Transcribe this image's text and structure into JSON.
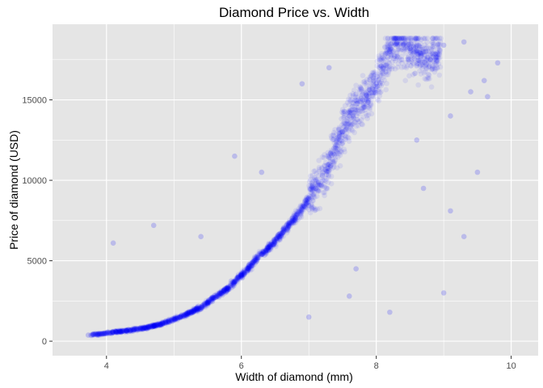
{
  "chart_data": {
    "type": "scatter",
    "title": "Diamond Price vs. Width",
    "xlabel": "Width of diamond (mm)",
    "ylabel": "Price of diamond (USD)",
    "xlim": [
      3.2,
      10.4
    ],
    "ylim": [
      -900,
      19700
    ],
    "x_ticks": [
      4,
      6,
      8,
      10
    ],
    "x_tick_labels": [
      "4",
      "6",
      "8",
      "10"
    ],
    "y_ticks": [
      0,
      5000,
      10000,
      15000
    ],
    "y_tick_labels": [
      "0",
      "5000",
      "10000",
      "15000"
    ],
    "grid": true,
    "panel_background": "#e5e5e5",
    "grid_color": "#ffffff",
    "point_color": "#0000ff",
    "point_alpha": 0.08,
    "point_count": 53940,
    "points": [
      [
        3.73,
        380
      ],
      [
        3.8,
        420
      ],
      [
        3.95,
        450
      ],
      [
        4.0,
        500
      ],
      [
        4.05,
        520
      ],
      [
        4.1,
        560
      ],
      [
        4.2,
        600
      ],
      [
        4.3,
        650
      ],
      [
        4.4,
        700
      ],
      [
        4.5,
        780
      ],
      [
        4.6,
        850
      ],
      [
        4.7,
        950
      ],
      [
        4.8,
        1050
      ],
      [
        4.9,
        1200
      ],
      [
        5.0,
        1350
      ],
      [
        5.1,
        1500
      ],
      [
        5.2,
        1700
      ],
      [
        5.3,
        1900
      ],
      [
        5.4,
        2100
      ],
      [
        5.5,
        2400
      ],
      [
        5.6,
        2700
      ],
      [
        5.7,
        3000
      ],
      [
        5.8,
        3300
      ],
      [
        5.9,
        3700
      ],
      [
        6.0,
        4100
      ],
      [
        6.1,
        4500
      ],
      [
        6.2,
        5000
      ],
      [
        6.3,
        5400
      ],
      [
        6.4,
        5800
      ],
      [
        6.5,
        6200
      ],
      [
        6.6,
        6700
      ],
      [
        6.7,
        7200
      ],
      [
        6.8,
        7700
      ],
      [
        6.9,
        8200
      ],
      [
        7.0,
        8900
      ],
      [
        7.1,
        9500
      ],
      [
        7.2,
        10300
      ],
      [
        7.3,
        11000
      ],
      [
        7.4,
        12000
      ],
      [
        7.5,
        13000
      ],
      [
        7.6,
        14000
      ],
      [
        7.8,
        15000
      ],
      [
        8.0,
        16000
      ],
      [
        8.1,
        17000
      ],
      [
        8.2,
        18000
      ],
      [
        8.3,
        18500
      ],
      [
        8.5,
        18200
      ],
      [
        8.8,
        17500
      ],
      [
        9.0,
        18400
      ],
      [
        9.3,
        18600
      ],
      [
        9.6,
        16200
      ],
      [
        9.65,
        15200
      ],
      [
        4.1,
        6100
      ],
      [
        4.7,
        7200
      ],
      [
        5.4,
        6500
      ],
      [
        7.0,
        1500
      ],
      [
        8.2,
        1800
      ],
      [
        9.1,
        8100
      ],
      [
        9.3,
        6500
      ],
      [
        9.5,
        10500
      ],
      [
        9.0,
        3000
      ],
      [
        8.7,
        9500
      ],
      [
        9.4,
        15500
      ],
      [
        9.8,
        17300
      ],
      [
        7.6,
        2800
      ],
      [
        6.9,
        16000
      ],
      [
        7.3,
        17000
      ],
      [
        8.6,
        12500
      ],
      [
        9.1,
        14000
      ],
      [
        5.9,
        11500
      ],
      [
        6.3,
        10500
      ],
      [
        7.7,
        4500
      ]
    ]
  }
}
